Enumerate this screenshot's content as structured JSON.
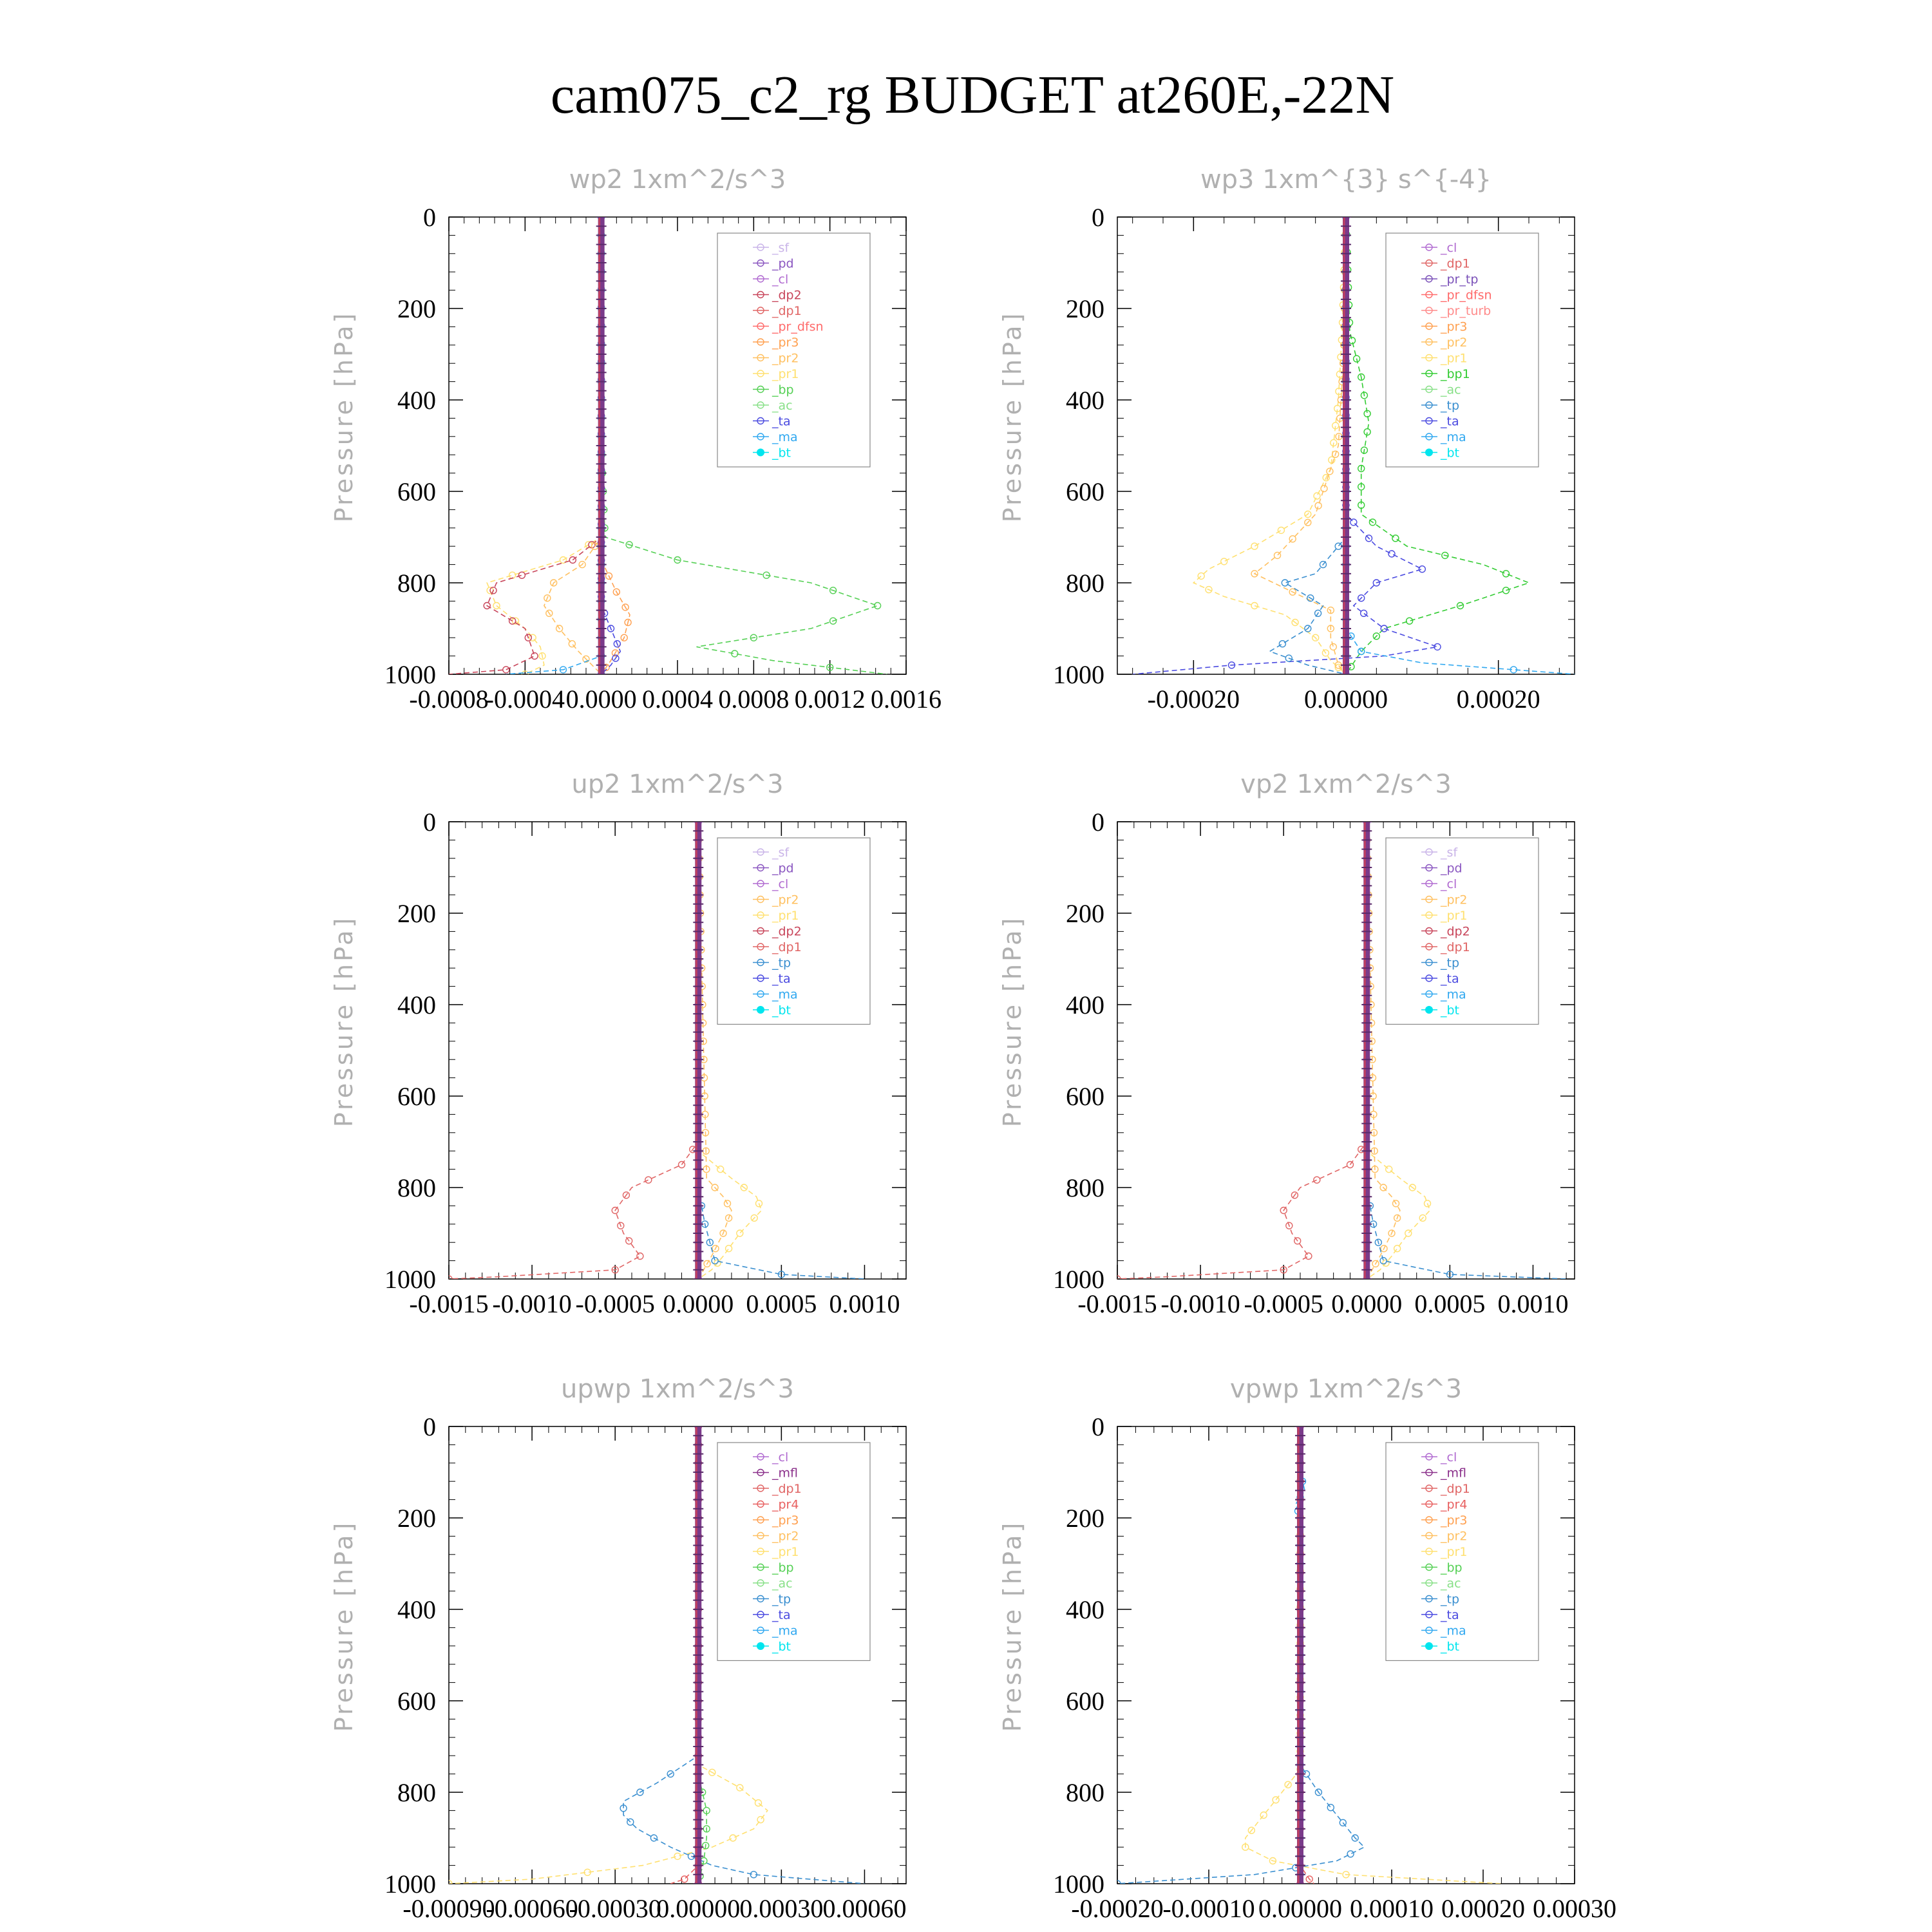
{
  "title": "cam075_c2_rg  BUDGET at260E,-22N",
  "ylabel": "Pressure [hPa]",
  "colors": {
    "_sf": "#c9b4e8",
    "_pd": "#8a56c0",
    "_cl": "#b06ad0",
    "_mfl": "#8a2f8a",
    "_dp2": "#c8455a",
    "_dp1": "#e06565",
    "_pr_tp": "#7a50b8",
    "_pr_dfsn": "#ff6a6a",
    "_pr_turb": "#ff8a8a",
    "_pr4": "#e86060",
    "_pr3": "#ffa050",
    "_pr2": "#ffc060",
    "_pr1": "#ffe070",
    "_bp1": "#33cc33",
    "_bp": "#55d055",
    "_ac": "#88e088",
    "_tp": "#3a8fd0",
    "_ta": "#4a4ae0",
    "_ma": "#30a8f0",
    "_bt": "#00e5ee"
  },
  "chart_data": [
    {
      "type": "line",
      "title": "wp2  1xm^2/s^3",
      "ylabel": "Pressure [hPa]",
      "ylim": [
        1000,
        0
      ],
      "xlim": [
        -0.0008,
        0.0016
      ],
      "xticks": [
        "-0.0008",
        "-0.0004",
        "0.0000",
        "0.0004",
        "0.0008",
        "0.0012",
        "0.0016"
      ],
      "yticks": [
        "0",
        "200",
        "400",
        "600",
        "800",
        "1000"
      ],
      "legend": [
        "_sf",
        "_pd",
        "_cl",
        "_dp2",
        "_dp1",
        "_pr_dfsn",
        "_pr3",
        "_pr2",
        "_pr1",
        "_bp",
        "_ac",
        "_ta",
        "_ma",
        "_bt"
      ],
      "series": [
        {
          "name": "_bp",
          "p": [
            0,
            500,
            700,
            750,
            800,
            850,
            900,
            940,
            970,
            1000
          ],
          "x": [
            0,
            0,
            2e-05,
            0.0004,
            0.0011,
            0.00145,
            0.0011,
            0.0005,
            0.0009,
            0.0015
          ]
        },
        {
          "name": "_pr1",
          "p": [
            0,
            700,
            750,
            800,
            850,
            900,
            940,
            980,
            1000
          ],
          "x": [
            0,
            0,
            -0.0002,
            -0.0006,
            -0.00055,
            -0.0004,
            -0.00032,
            -0.0003,
            -0.0004
          ]
        },
        {
          "name": "_dp2",
          "p": [
            0,
            700,
            750,
            800,
            850,
            900,
            960,
            990,
            1000
          ],
          "x": [
            0,
            0,
            -0.00015,
            -0.00055,
            -0.0006,
            -0.0004,
            -0.00035,
            -0.0005,
            -0.0008
          ]
        },
        {
          "name": "_pr2",
          "p": [
            0,
            700,
            760,
            800,
            850,
            900,
            950,
            1000
          ],
          "x": [
            0,
            0,
            -0.0001,
            -0.00025,
            -0.0003,
            -0.00022,
            -0.00012,
            0
          ]
        },
        {
          "name": "_pr3",
          "p": [
            0,
            750,
            820,
            870,
            920,
            970,
            1000
          ],
          "x": [
            0,
            0,
            8e-05,
            0.00015,
            0.00012,
            5e-05,
            0
          ]
        },
        {
          "name": "_ta",
          "p": [
            0,
            850,
            900,
            950,
            980,
            1000
          ],
          "x": [
            0,
            0,
            5e-05,
            0.0001,
            5e-05,
            0
          ]
        },
        {
          "name": "_ma",
          "p": [
            0,
            960,
            990,
            1000
          ],
          "x": [
            0,
            0,
            -0.0002,
            -0.0005
          ]
        },
        {
          "name": "_pd",
          "p": [
            0,
            1000
          ],
          "x": [
            0,
            0
          ]
        },
        {
          "name": "_bt",
          "p": [
            0,
            1000
          ],
          "x": [
            0,
            0
          ]
        }
      ]
    },
    {
      "type": "line",
      "title": "wp3  1xm^{3} s^{-4}",
      "ylabel": "Pressure [hPa]",
      "ylim": [
        1000,
        0
      ],
      "xlim": [
        -0.0003,
        0.0003
      ],
      "xticks": [
        "-0.00020",
        "0.00000",
        "0.00020"
      ],
      "xtick_values": [
        -0.0002,
        0,
        0.0002
      ],
      "yticks": [
        "0",
        "200",
        "400",
        "600",
        "800",
        "1000"
      ],
      "legend": [
        "_cl",
        "_dp1",
        "_pr_tp",
        "_pr_dfsn",
        "_pr_turb",
        "_pr3",
        "_pr2",
        "_pr1",
        "_bp1",
        "_ac",
        "_tp",
        "_ta",
        "_ma",
        "_bt"
      ],
      "series": [
        {
          "name": "_bp1",
          "p": [
            0,
            250,
            350,
            450,
            550,
            650,
            720,
            760,
            800,
            850,
            900,
            950,
            1000
          ],
          "x": [
            0,
            5e-06,
            2e-05,
            3e-05,
            2e-05,
            2e-05,
            8e-05,
            0.00018,
            0.00024,
            0.00015,
            5e-05,
            2e-05,
            0
          ]
        },
        {
          "name": "_pr1",
          "p": [
            0,
            250,
            400,
            550,
            650,
            720,
            770,
            800,
            830,
            870,
            920,
            970,
            1000
          ],
          "x": [
            0,
            -5e-06,
            -1e-05,
            -2e-05,
            -5e-05,
            -0.00012,
            -0.00018,
            -0.0002,
            -0.00016,
            -8e-05,
            -4e-05,
            -2e-05,
            0
          ]
        },
        {
          "name": "_pr2",
          "p": [
            0,
            300,
            500,
            650,
            740,
            780,
            820,
            860,
            920,
            980,
            1000
          ],
          "x": [
            0,
            -3e-06,
            -1e-05,
            -4e-05,
            -9e-05,
            -0.00012,
            -7e-05,
            -2e-05,
            -2e-05,
            -1e-05,
            0
          ]
        },
        {
          "name": "_ta",
          "p": [
            0,
            650,
            720,
            770,
            800,
            850,
            900,
            940,
            960,
            980,
            1000
          ],
          "x": [
            0,
            0,
            4e-05,
            0.0001,
            4e-05,
            1e-05,
            5e-05,
            0.00012,
            5e-05,
            -0.00015,
            -0.00028
          ]
        },
        {
          "name": "_tp",
          "p": [
            0,
            700,
            780,
            800,
            850,
            900,
            950,
            980,
            1000
          ],
          "x": [
            0,
            0,
            -4e-05,
            -8e-05,
            -3e-05,
            -5e-05,
            -0.0001,
            -5e-05,
            0
          ]
        },
        {
          "name": "_ma",
          "p": [
            0,
            900,
            950,
            975,
            990,
            1000
          ],
          "x": [
            0,
            0,
            2e-05,
            0.0001,
            0.00022,
            0.0003
          ]
        },
        {
          "name": "_pr_tp",
          "p": [
            0,
            1000
          ],
          "x": [
            0,
            0
          ]
        },
        {
          "name": "_bt",
          "p": [
            0,
            1000
          ],
          "x": [
            0,
            0
          ]
        }
      ]
    },
    {
      "type": "line",
      "title": "up2  1xm^2/s^3",
      "ylabel": "Pressure [hPa]",
      "ylim": [
        1000,
        0
      ],
      "xlim": [
        -0.0015,
        0.00125
      ],
      "xticks": [
        "-0.0015",
        "-0.0010",
        "-0.0005",
        "0.0000",
        "0.0005",
        "0.0010"
      ],
      "xtick_values": [
        -0.0015,
        -0.001,
        -0.0005,
        0,
        0.0005,
        0.001
      ],
      "yticks": [
        "0",
        "200",
        "400",
        "600",
        "800",
        "1000"
      ],
      "legend": [
        "_sf",
        "_pd",
        "_cl",
        "_pr2",
        "_pr1",
        "_dp2",
        "_dp1",
        "_tp",
        "_ta",
        "_ma",
        "_bt"
      ],
      "series": [
        {
          "name": "_dp1",
          "p": [
            0,
            700,
            750,
            800,
            850,
            900,
            950,
            980,
            995,
            1000
          ],
          "x": [
            0,
            0,
            -0.0001,
            -0.0004,
            -0.0005,
            -0.00045,
            -0.00035,
            -0.0005,
            -0.0012,
            -0.0015
          ]
        },
        {
          "name": "_pr1",
          "p": [
            0,
            720,
            780,
            820,
            850,
            900,
            950,
            980,
            1000
          ],
          "x": [
            0,
            0,
            0.0002,
            0.00035,
            0.00038,
            0.00025,
            0.00015,
            8e-05,
            0
          ]
        },
        {
          "name": "_pr2",
          "p": [
            0,
            780,
            820,
            850,
            900,
            950,
            1000
          ],
          "x": [
            0,
            5e-05,
            0.00015,
            0.0002,
            0.00015,
            8e-05,
            0
          ]
        },
        {
          "name": "_tp",
          "p": [
            0,
            800,
            880,
            960,
            990,
            1000
          ],
          "x": [
            0,
            0,
            4e-05,
            0.0001,
            0.0005,
            0.001
          ]
        },
        {
          "name": "_pd",
          "p": [
            0,
            1000
          ],
          "x": [
            0,
            0
          ]
        },
        {
          "name": "_sf",
          "p": [
            0,
            1000
          ],
          "x": [
            0,
            0
          ]
        }
      ]
    },
    {
      "type": "line",
      "title": "vp2  1xm^2/s^3",
      "ylabel": "Pressure [hPa]",
      "ylim": [
        1000,
        0
      ],
      "xlim": [
        -0.0015,
        0.00125
      ],
      "xticks": [
        "-0.0015",
        "-0.0010",
        "-0.0005",
        "0.0000",
        "0.0005",
        "0.0010"
      ],
      "xtick_values": [
        -0.0015,
        -0.001,
        -0.0005,
        0,
        0.0005,
        0.001
      ],
      "yticks": [
        "0",
        "200",
        "400",
        "600",
        "800",
        "1000"
      ],
      "legend": [
        "_sf",
        "_pd",
        "_cl",
        "_pr2",
        "_pr1",
        "_dp2",
        "_dp1",
        "_tp",
        "_ta",
        "_ma",
        "_bt"
      ],
      "series": [
        {
          "name": "_dp1",
          "p": [
            0,
            700,
            750,
            800,
            850,
            900,
            950,
            980,
            995,
            1000
          ],
          "x": [
            0,
            0,
            -0.0001,
            -0.0004,
            -0.0005,
            -0.00045,
            -0.00035,
            -0.0005,
            -0.0012,
            -0.0015
          ]
        },
        {
          "name": "_pr1",
          "p": [
            0,
            720,
            780,
            820,
            850,
            900,
            950,
            980,
            1000
          ],
          "x": [
            0,
            0,
            0.0002,
            0.00035,
            0.00038,
            0.00025,
            0.00015,
            8e-05,
            0
          ]
        },
        {
          "name": "_pr2",
          "p": [
            0,
            780,
            820,
            850,
            900,
            950,
            1000
          ],
          "x": [
            0,
            5e-05,
            0.00015,
            0.0002,
            0.00015,
            8e-05,
            0
          ]
        },
        {
          "name": "_tp",
          "p": [
            0,
            800,
            880,
            960,
            990,
            1000
          ],
          "x": [
            0,
            0,
            4e-05,
            0.0001,
            0.0005,
            0.0012
          ]
        },
        {
          "name": "_pd",
          "p": [
            0,
            1000
          ],
          "x": [
            0,
            0
          ]
        },
        {
          "name": "_sf",
          "p": [
            0,
            1000
          ],
          "x": [
            0,
            0
          ]
        }
      ]
    },
    {
      "type": "line",
      "title": "upwp  1xm^2/s^3",
      "ylabel": "Pressure [hPa]",
      "ylim": [
        1000,
        0
      ],
      "xlim": [
        -0.0009,
        0.00075
      ],
      "xticks": [
        "-0.00090",
        "-0.00060",
        "-0.00030",
        "0.00000",
        "0.00030",
        "0.00060"
      ],
      "xtick_values": [
        -0.0009,
        -0.0006,
        -0.0003,
        0,
        0.0003,
        0.0006
      ],
      "yticks": [
        "0",
        "200",
        "400",
        "600",
        "800",
        "1000"
      ],
      "legend": [
        "_cl",
        "_mfl",
        "_dp1",
        "_pr4",
        "_pr3",
        "_pr2",
        "_pr1",
        "_bp",
        "_ac",
        "_tp",
        "_ta",
        "_ma",
        "_bt"
      ],
      "series": [
        {
          "name": "_tp",
          "p": [
            0,
            720,
            780,
            820,
            850,
            880,
            920,
            960,
            980,
            1000
          ],
          "x": [
            0,
            0,
            -0.00015,
            -0.00027,
            -0.00027,
            -0.00022,
            -0.0001,
            5e-05,
            0.0002,
            0.0006
          ]
        },
        {
          "name": "_pr1",
          "p": [
            0,
            740,
            790,
            840,
            880,
            920,
            960,
            990,
            1000
          ],
          "x": [
            0,
            0,
            0.00015,
            0.00025,
            0.0002,
            5e-05,
            -0.0002,
            -0.0006,
            -0.0009
          ]
        },
        {
          "name": "_bp",
          "p": [
            0,
            760,
            840,
            900,
            950,
            1000
          ],
          "x": [
            0,
            0,
            3e-05,
            3e-05,
            2e-05,
            0
          ]
        },
        {
          "name": "_pr4",
          "p": [
            0,
            960,
            990,
            1000
          ],
          "x": [
            0,
            0,
            -5e-05,
            -0.0001
          ]
        },
        {
          "name": "_mfl",
          "p": [
            0,
            1000
          ],
          "x": [
            0,
            0
          ]
        },
        {
          "name": "_dp1",
          "p": [
            0,
            1000
          ],
          "x": [
            0,
            0
          ]
        }
      ]
    },
    {
      "type": "line",
      "title": "vpwp  1xm^2/s^3",
      "ylabel": "Pressure [hPa]",
      "ylim": [
        1000,
        0
      ],
      "xlim": [
        -0.0002,
        0.0003
      ],
      "xticks": [
        "-0.00020",
        "-0.00010",
        "0.00000",
        "0.00010",
        "0.00020",
        "0.00030"
      ],
      "xtick_values": [
        -0.0002,
        -0.0001,
        0,
        0.0001,
        0.0002,
        0.0003
      ],
      "yticks": [
        "0",
        "200",
        "400",
        "600",
        "800",
        "1000"
      ],
      "legend": [
        "_cl",
        "_mfl",
        "_dp1",
        "_pr4",
        "_pr3",
        "_pr2",
        "_pr1",
        "_bp",
        "_ac",
        "_tp",
        "_ta",
        "_ma",
        "_bt"
      ],
      "series": [
        {
          "name": "_pr1",
          "p": [
            0,
            750,
            800,
            850,
            900,
            920,
            950,
            980,
            1000
          ],
          "x": [
            0,
            0,
            -2e-05,
            -4e-05,
            -6e-05,
            -6e-05,
            -3e-05,
            5e-05,
            0.00022
          ]
        },
        {
          "name": "_tp",
          "p": [
            0,
            740,
            800,
            850,
            900,
            920,
            950,
            980,
            1000
          ],
          "x": [
            0,
            0,
            2e-05,
            4e-05,
            6e-05,
            7e-05,
            4e-05,
            -5e-05,
            -0.0002
          ]
        },
        {
          "name": "_ma",
          "p": [
            0,
            100,
            140,
            170,
            200,
            1000
          ],
          "x": [
            0,
            0,
            5e-06,
            -5e-06,
            0,
            0
          ]
        },
        {
          "name": "_pr4",
          "p": [
            0,
            960,
            990,
            1000
          ],
          "x": [
            0,
            0,
            1e-05,
            1.5e-05
          ]
        },
        {
          "name": "_mfl",
          "p": [
            0,
            1000
          ],
          "x": [
            0,
            0
          ]
        },
        {
          "name": "_dp1",
          "p": [
            0,
            1000
          ],
          "x": [
            0,
            0
          ]
        }
      ]
    }
  ]
}
